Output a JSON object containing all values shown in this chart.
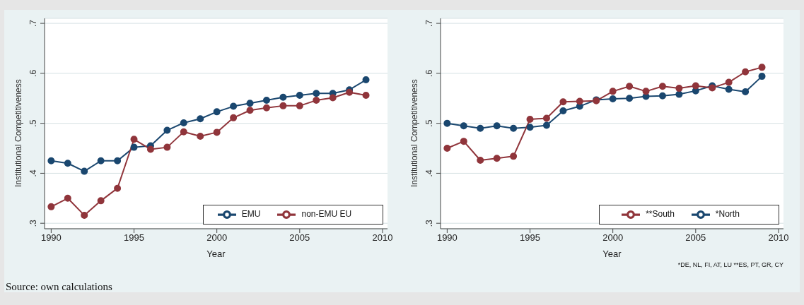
{
  "chart_data": [
    {
      "type": "line",
      "xlabel": "Year",
      "ylabel": "Institutional Competitiveness",
      "x": [
        1990,
        1991,
        1992,
        1993,
        1994,
        1995,
        1996,
        1997,
        1998,
        1999,
        2000,
        2001,
        2002,
        2003,
        2004,
        2005,
        2006,
        2007,
        2008,
        2009
      ],
      "series": [
        {
          "name": "EMU",
          "color": "#1a476f",
          "values": [
            0.425,
            0.42,
            0.404,
            0.425,
            0.425,
            0.452,
            0.455,
            0.486,
            0.501,
            0.509,
            0.523,
            0.534,
            0.54,
            0.546,
            0.552,
            0.556,
            0.56,
            0.56,
            0.567,
            0.587
          ]
        },
        {
          "name": "non-EMU EU",
          "color": "#90353b",
          "values": [
            0.333,
            0.35,
            0.316,
            0.345,
            0.37,
            0.468,
            0.448,
            0.452,
            0.483,
            0.474,
            0.482,
            0.511,
            0.526,
            0.531,
            0.535,
            0.535,
            0.546,
            0.551,
            0.562,
            0.556
          ]
        }
      ],
      "xlim": [
        1989.6,
        2010.3
      ],
      "xticks": [
        1990,
        1995,
        2000,
        2005,
        2010
      ],
      "ylim": [
        0.289,
        0.71
      ],
      "yticks": [
        {
          "value": 0.3,
          "label": ".3"
        },
        {
          "value": 0.4,
          "label": ".4"
        },
        {
          "value": 0.5,
          "label": ".5"
        },
        {
          "value": 0.6,
          "label": ".6"
        },
        {
          "value": 0.7,
          "label": ".7"
        }
      ],
      "grid": "y",
      "legend": "bottom right",
      "marker": "circle",
      "line_style": "solid",
      "annotations": [
        "Source: own calculations"
      ]
    },
    {
      "type": "line",
      "xlabel": "Year",
      "ylabel": "Institutional Competitiveness",
      "x": [
        1990,
        1991,
        1992,
        1993,
        1994,
        1995,
        1996,
        1997,
        1998,
        1999,
        2000,
        2001,
        2002,
        2003,
        2004,
        2005,
        2006,
        2007,
        2008,
        2009
      ],
      "series": [
        {
          "name": "*North",
          "color": "#1a476f",
          "values": [
            0.5,
            0.495,
            0.49,
            0.495,
            0.49,
            0.492,
            0.496,
            0.525,
            0.534,
            0.547,
            0.549,
            0.55,
            0.554,
            0.555,
            0.558,
            0.565,
            0.575,
            0.568,
            0.563,
            0.594
          ]
        },
        {
          "name": "**South",
          "color": "#90353b",
          "values": [
            0.45,
            0.464,
            0.426,
            0.43,
            0.434,
            0.508,
            0.51,
            0.543,
            0.544,
            0.545,
            0.564,
            0.574,
            0.564,
            0.574,
            0.57,
            0.575,
            0.571,
            0.582,
            0.603,
            0.612
          ]
        }
      ],
      "xlim": [
        1989.6,
        2010.3
      ],
      "xticks": [
        1990,
        1995,
        2000,
        2005,
        2010
      ],
      "ylim": [
        0.289,
        0.71
      ],
      "yticks": [
        {
          "value": 0.3,
          "label": ".3"
        },
        {
          "value": 0.4,
          "label": ".4"
        },
        {
          "value": 0.5,
          "label": ".5"
        },
        {
          "value": 0.6,
          "label": ".6"
        },
        {
          "value": 0.7,
          "label": ".7"
        }
      ],
      "grid": "y",
      "legend": "bottom right",
      "marker": "circle",
      "line_style": "solid",
      "annotations": [
        "*DE, NL, FI, AT, LU  **ES, PT, GR, CY"
      ]
    }
  ]
}
